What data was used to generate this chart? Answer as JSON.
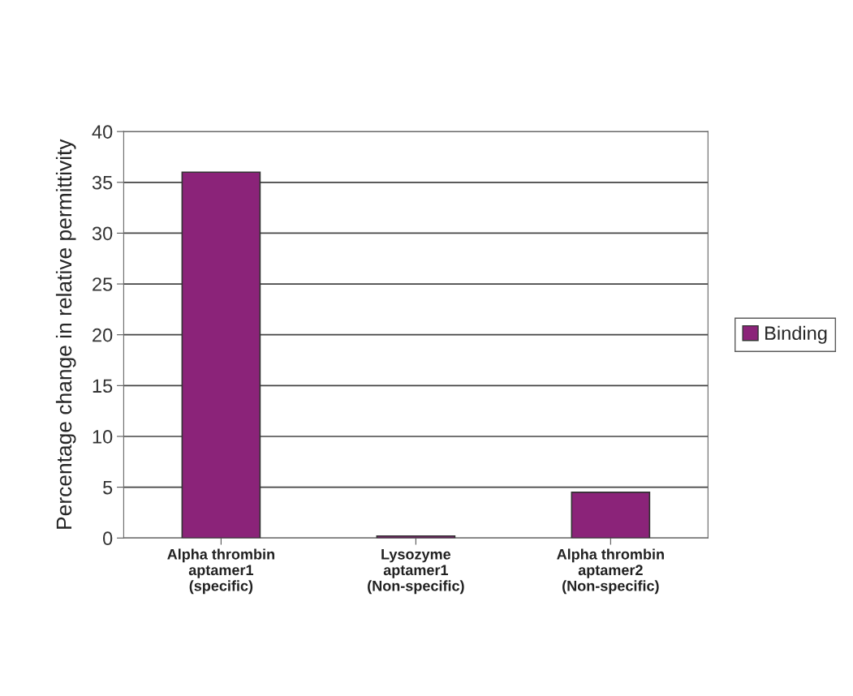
{
  "chart_data": {
    "type": "bar",
    "ylabel": "Percentage change in relative permittivity",
    "categories": [
      "Alpha thrombin\naptamer1\n(specific)",
      "Lysozyme\naptamer1\n(Non-specific)",
      "Alpha thrombin\naptamer2\n(Non-specific)"
    ],
    "series": [
      {
        "name": "Binding",
        "color": "#8b2379",
        "values": [
          36,
          0.2,
          4.5
        ]
      }
    ],
    "ylim": [
      0,
      40
    ],
    "yticks": [
      0,
      5,
      10,
      15,
      20,
      25,
      30,
      35,
      40
    ],
    "grid": "y",
    "legend": "right"
  }
}
